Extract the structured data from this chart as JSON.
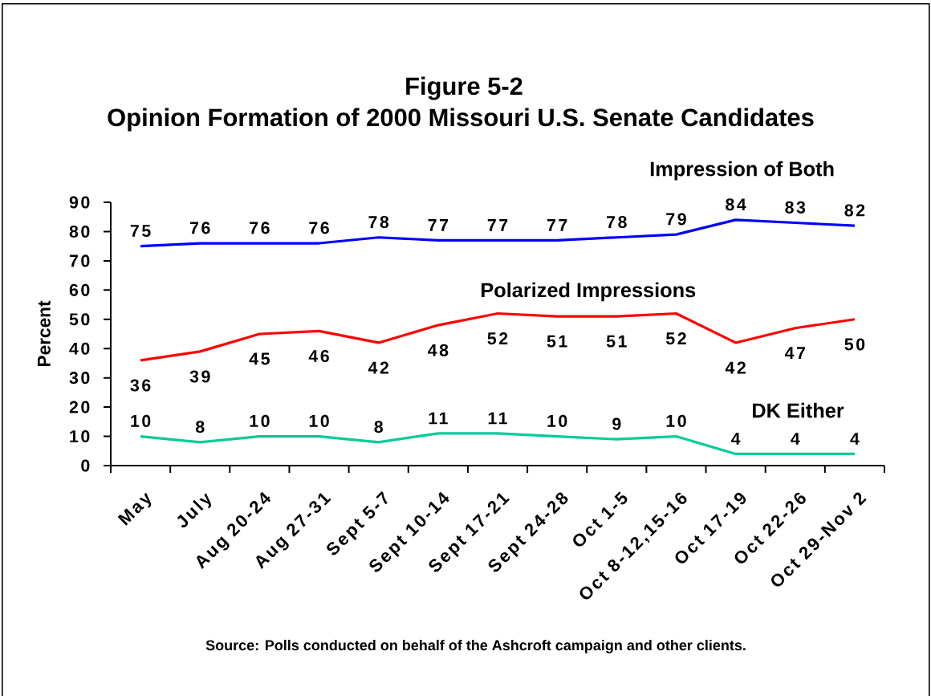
{
  "chart_data": {
    "type": "line",
    "title": "Figure 5-2",
    "subtitle": "Opinion Formation of 2000 Missouri U.S. Senate Candidates",
    "ylabel": "Percent",
    "categories": [
      "May",
      "July",
      "Aug 20-24",
      "Aug 27-31",
      "Sept 5-7",
      "Sept 10-14",
      "Sept 17-21",
      "Sept 24-28",
      "Oct 1-5",
      "Oct 8-12,15-16",
      "Oct 17-19",
      "Oct 22-26",
      "Oct 29-Nov 2"
    ],
    "series": [
      {
        "name": "Impression of Both",
        "color": "#0000ff",
        "values": [
          75,
          76,
          76,
          76,
          78,
          77,
          77,
          77,
          78,
          79,
          84,
          83,
          82
        ]
      },
      {
        "name": "Polarized Impressions",
        "color": "#ff0000",
        "values": [
          36,
          39,
          45,
          46,
          42,
          48,
          52,
          51,
          51,
          52,
          42,
          47,
          50
        ]
      },
      {
        "name": "DK Either",
        "color": "#00cc99",
        "values": [
          10,
          8,
          10,
          10,
          8,
          11,
          11,
          10,
          9,
          10,
          4,
          4,
          4
        ]
      }
    ],
    "ylim": [
      0,
      90
    ],
    "yticks": [
      0,
      10,
      20,
      30,
      40,
      50,
      60,
      70,
      80,
      90
    ],
    "data_labels": true,
    "legend": false,
    "grid": false,
    "marker": "none",
    "line_style": "solid",
    "annotations": [
      "Source: Polls conducted on behalf of the Ashcroft campaign and other clients."
    ]
  }
}
